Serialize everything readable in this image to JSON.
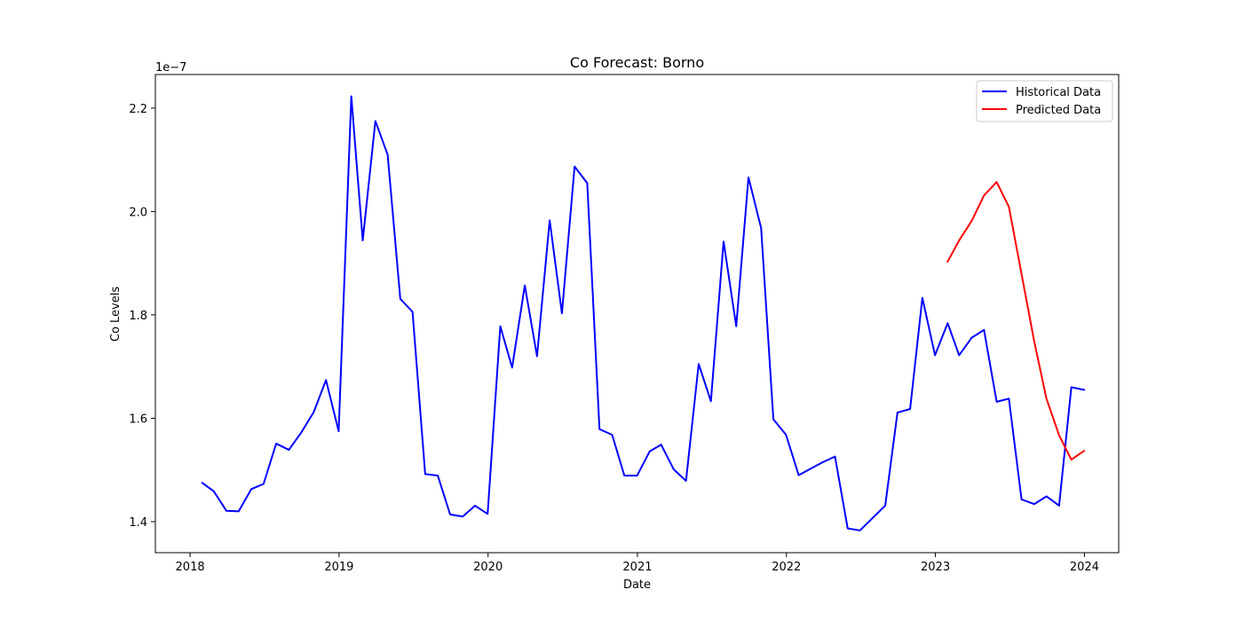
{
  "chart_data": {
    "type": "line",
    "title": "Co Forecast: Borno",
    "xlabel": "Date",
    "ylabel": "Co Levels",
    "y_offset_label": "1e−7",
    "y_scale_factor": 1e-07,
    "xlim": [
      "2017-10-08",
      "2024-03-25"
    ],
    "ylim": [
      1.34e-07,
      2.265e-07
    ],
    "x_ticks": [
      {
        "date": "2018-01-01",
        "label": "2018"
      },
      {
        "date": "2019-01-01",
        "label": "2019"
      },
      {
        "date": "2020-01-01",
        "label": "2020"
      },
      {
        "date": "2021-01-01",
        "label": "2021"
      },
      {
        "date": "2022-01-01",
        "label": "2022"
      },
      {
        "date": "2023-01-01",
        "label": "2023"
      },
      {
        "date": "2024-01-01",
        "label": "2024"
      }
    ],
    "y_ticks": [
      {
        "value": 1.4e-07,
        "label": "1.4"
      },
      {
        "value": 1.6e-07,
        "label": "1.6"
      },
      {
        "value": 1.8e-07,
        "label": "1.8"
      },
      {
        "value": 2e-07,
        "label": "2.0"
      },
      {
        "value": 2.2e-07,
        "label": "2.2"
      }
    ],
    "grid": false,
    "legend_position": "top-right",
    "series": [
      {
        "name": "Historical Data",
        "color": "#0000ff",
        "x": [
          "2018-01-31",
          "2018-02-28",
          "2018-03-31",
          "2018-04-30",
          "2018-05-31",
          "2018-06-30",
          "2018-07-31",
          "2018-08-31",
          "2018-09-30",
          "2018-10-31",
          "2018-11-30",
          "2018-12-31",
          "2019-01-31",
          "2019-02-28",
          "2019-03-31",
          "2019-04-30",
          "2019-05-31",
          "2019-06-30",
          "2019-07-31",
          "2019-08-31",
          "2019-09-30",
          "2019-10-31",
          "2019-11-30",
          "2019-12-31",
          "2020-01-31",
          "2020-02-29",
          "2020-03-31",
          "2020-04-30",
          "2020-05-31",
          "2020-06-30",
          "2020-07-31",
          "2020-08-31",
          "2020-09-30",
          "2020-10-31",
          "2020-11-30",
          "2020-12-31",
          "2021-01-31",
          "2021-02-28",
          "2021-03-31",
          "2021-04-30",
          "2021-05-31",
          "2021-06-30",
          "2021-07-31",
          "2021-08-31",
          "2021-09-30",
          "2021-10-31",
          "2021-11-30",
          "2021-12-31",
          "2022-01-31",
          "2022-02-28",
          "2022-03-31",
          "2022-04-30",
          "2022-05-31",
          "2022-06-30",
          "2022-07-31",
          "2022-08-31",
          "2022-09-30",
          "2022-10-31",
          "2022-11-30",
          "2022-12-31",
          "2023-01-31",
          "2023-02-28",
          "2023-03-31",
          "2023-04-30",
          "2023-05-31",
          "2023-06-30",
          "2023-07-31",
          "2023-08-31",
          "2023-09-30",
          "2023-10-31",
          "2023-11-30",
          "2023-12-31"
        ],
        "y": [
          1.475e-07,
          1.459e-07,
          1.421e-07,
          1.42e-07,
          1.463e-07,
          1.473e-07,
          1.551e-07,
          1.539e-07,
          1.572e-07,
          1.612e-07,
          1.674e-07,
          1.575e-07,
          2.223e-07,
          1.944e-07,
          2.175e-07,
          2.11e-07,
          1.831e-07,
          1.806e-07,
          1.492e-07,
          1.489e-07,
          1.414e-07,
          1.41e-07,
          1.431e-07,
          1.415e-07,
          1.778e-07,
          1.698e-07,
          1.857e-07,
          1.72e-07,
          1.983e-07,
          1.803e-07,
          2.087e-07,
          2.055e-07,
          1.579e-07,
          1.568e-07,
          1.489e-07,
          1.489e-07,
          1.536e-07,
          1.549e-07,
          1.501e-07,
          1.479e-07,
          1.705e-07,
          1.633e-07,
          1.942e-07,
          1.778e-07,
          2.066e-07,
          1.968e-07,
          1.598e-07,
          1.568e-07,
          1.49e-07,
          1.502e-07,
          1.515e-07,
          1.526e-07,
          1.387e-07,
          1.383e-07,
          1.407e-07,
          1.431e-07,
          1.611e-07,
          1.618e-07,
          1.833e-07,
          1.722e-07,
          1.784e-07,
          1.722e-07,
          1.756e-07,
          1.771e-07,
          1.632e-07,
          1.638e-07,
          1.443e-07,
          1.434e-07,
          1.449e-07,
          1.431e-07,
          1.66e-07,
          1.655e-07
        ]
      },
      {
        "name": "Predicted Data",
        "color": "#ff0000",
        "x": [
          "2023-01-31",
          "2023-02-28",
          "2023-03-31",
          "2023-04-30",
          "2023-05-31",
          "2023-06-30",
          "2023-07-31",
          "2023-08-31",
          "2023-09-30",
          "2023-10-31",
          "2023-11-30",
          "2023-12-31"
        ],
        "y": [
          1.903e-07,
          1.944e-07,
          1.982e-07,
          2.031e-07,
          2.057e-07,
          2.009e-07,
          1.879e-07,
          1.749e-07,
          1.638e-07,
          1.567e-07,
          1.52e-07,
          1.537e-07
        ]
      }
    ]
  }
}
